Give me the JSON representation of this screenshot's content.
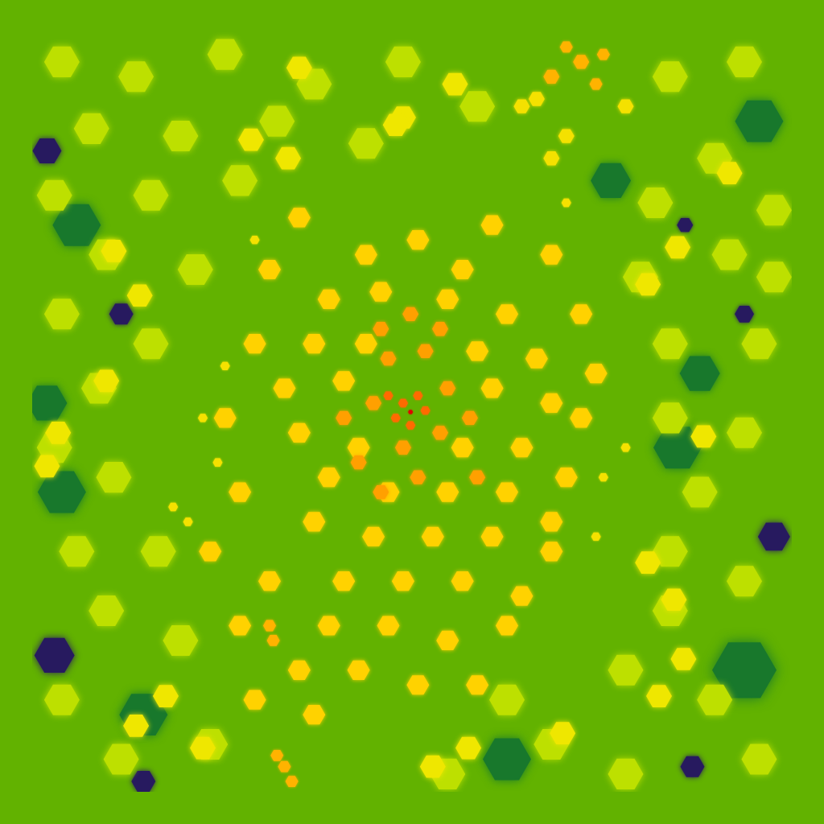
{
  "chart_data": {
    "type": "bubble",
    "xlim": [
      0,
      1024
    ],
    "ylim": [
      1024,
      0
    ],
    "grid": false,
    "tick_labels": false,
    "color_range": [
      0,
      1
    ],
    "points": [
      {
        "x": 20,
        "y": 160,
        "size": 18,
        "value": 0.05
      },
      {
        "x": 30,
        "y": 840,
        "size": 25,
        "value": 0.05
      },
      {
        "x": 120,
        "y": 380,
        "size": 15,
        "value": 0.05
      },
      {
        "x": 1000,
        "y": 680,
        "size": 20,
        "value": 0.05
      },
      {
        "x": 960,
        "y": 380,
        "size": 12,
        "value": 0.05
      },
      {
        "x": 890,
        "y": 990,
        "size": 15,
        "value": 0.05
      },
      {
        "x": 150,
        "y": 1010,
        "size": 15,
        "value": 0.05
      },
      {
        "x": 880,
        "y": 260,
        "size": 10,
        "value": 0.05
      },
      {
        "x": 60,
        "y": 260,
        "size": 30,
        "value": 0.3
      },
      {
        "x": 40,
        "y": 620,
        "size": 30,
        "value": 0.3
      },
      {
        "x": 980,
        "y": 120,
        "size": 30,
        "value": 0.3
      },
      {
        "x": 960,
        "y": 860,
        "size": 40,
        "value": 0.3
      },
      {
        "x": 640,
        "y": 980,
        "size": 30,
        "value": 0.3
      },
      {
        "x": 870,
        "y": 560,
        "size": 30,
        "value": 0.3
      },
      {
        "x": 150,
        "y": 920,
        "size": 30,
        "value": 0.3
      },
      {
        "x": 20,
        "y": 500,
        "size": 25,
        "value": 0.3
      },
      {
        "x": 780,
        "y": 200,
        "size": 25,
        "value": 0.3
      },
      {
        "x": 900,
        "y": 460,
        "size": 25,
        "value": 0.3
      },
      {
        "x": 40,
        "y": 40,
        "size": 22,
        "value": 0.65
      },
      {
        "x": 140,
        "y": 60,
        "size": 22,
        "value": 0.65
      },
      {
        "x": 260,
        "y": 30,
        "size": 22,
        "value": 0.65
      },
      {
        "x": 380,
        "y": 70,
        "size": 22,
        "value": 0.65
      },
      {
        "x": 500,
        "y": 40,
        "size": 22,
        "value": 0.65
      },
      {
        "x": 600,
        "y": 100,
        "size": 22,
        "value": 0.65
      },
      {
        "x": 860,
        "y": 60,
        "size": 22,
        "value": 0.65
      },
      {
        "x": 960,
        "y": 40,
        "size": 22,
        "value": 0.65
      },
      {
        "x": 80,
        "y": 130,
        "size": 22,
        "value": 0.65
      },
      {
        "x": 200,
        "y": 140,
        "size": 22,
        "value": 0.65
      },
      {
        "x": 330,
        "y": 120,
        "size": 22,
        "value": 0.65
      },
      {
        "x": 450,
        "y": 150,
        "size": 22,
        "value": 0.65
      },
      {
        "x": 920,
        "y": 170,
        "size": 22,
        "value": 0.65
      },
      {
        "x": 1000,
        "y": 240,
        "size": 22,
        "value": 0.65
      },
      {
        "x": 30,
        "y": 220,
        "size": 22,
        "value": 0.65
      },
      {
        "x": 160,
        "y": 220,
        "size": 22,
        "value": 0.65
      },
      {
        "x": 280,
        "y": 200,
        "size": 22,
        "value": 0.65
      },
      {
        "x": 840,
        "y": 230,
        "size": 22,
        "value": 0.65
      },
      {
        "x": 940,
        "y": 300,
        "size": 22,
        "value": 0.65
      },
      {
        "x": 100,
        "y": 300,
        "size": 22,
        "value": 0.65
      },
      {
        "x": 220,
        "y": 320,
        "size": 22,
        "value": 0.65
      },
      {
        "x": 820,
        "y": 330,
        "size": 22,
        "value": 0.65
      },
      {
        "x": 1000,
        "y": 330,
        "size": 22,
        "value": 0.65
      },
      {
        "x": 40,
        "y": 380,
        "size": 22,
        "value": 0.65
      },
      {
        "x": 160,
        "y": 420,
        "size": 22,
        "value": 0.65
      },
      {
        "x": 860,
        "y": 420,
        "size": 22,
        "value": 0.65
      },
      {
        "x": 980,
        "y": 420,
        "size": 22,
        "value": 0.65
      },
      {
        "x": 90,
        "y": 480,
        "size": 22,
        "value": 0.65
      },
      {
        "x": 30,
        "y": 560,
        "size": 22,
        "value": 0.65
      },
      {
        "x": 860,
        "y": 520,
        "size": 22,
        "value": 0.65
      },
      {
        "x": 960,
        "y": 540,
        "size": 22,
        "value": 0.65
      },
      {
        "x": 900,
        "y": 620,
        "size": 22,
        "value": 0.65
      },
      {
        "x": 110,
        "y": 600,
        "size": 22,
        "value": 0.65
      },
      {
        "x": 170,
        "y": 700,
        "size": 22,
        "value": 0.65
      },
      {
        "x": 60,
        "y": 700,
        "size": 22,
        "value": 0.65
      },
      {
        "x": 860,
        "y": 700,
        "size": 22,
        "value": 0.65
      },
      {
        "x": 960,
        "y": 740,
        "size": 22,
        "value": 0.65
      },
      {
        "x": 100,
        "y": 780,
        "size": 22,
        "value": 0.65
      },
      {
        "x": 200,
        "y": 820,
        "size": 22,
        "value": 0.65
      },
      {
        "x": 40,
        "y": 900,
        "size": 22,
        "value": 0.65
      },
      {
        "x": 860,
        "y": 780,
        "size": 22,
        "value": 0.65
      },
      {
        "x": 800,
        "y": 860,
        "size": 22,
        "value": 0.65
      },
      {
        "x": 920,
        "y": 900,
        "size": 22,
        "value": 0.65
      },
      {
        "x": 980,
        "y": 980,
        "size": 22,
        "value": 0.65
      },
      {
        "x": 120,
        "y": 980,
        "size": 22,
        "value": 0.65
      },
      {
        "x": 240,
        "y": 960,
        "size": 22,
        "value": 0.65
      },
      {
        "x": 700,
        "y": 960,
        "size": 22,
        "value": 0.65
      },
      {
        "x": 800,
        "y": 1000,
        "size": 22,
        "value": 0.65
      },
      {
        "x": 560,
        "y": 1000,
        "size": 22,
        "value": 0.65
      },
      {
        "x": 640,
        "y": 900,
        "size": 22,
        "value": 0.65
      },
      {
        "x": 360,
        "y": 48,
        "size": 16,
        "value": 0.78
      },
      {
        "x": 570,
        "y": 70,
        "size": 16,
        "value": 0.78
      },
      {
        "x": 500,
        "y": 115,
        "size": 16,
        "value": 0.78
      },
      {
        "x": 295,
        "y": 145,
        "size": 16,
        "value": 0.78
      },
      {
        "x": 345,
        "y": 170,
        "size": 16,
        "value": 0.78
      },
      {
        "x": 110,
        "y": 295,
        "size": 16,
        "value": 0.78
      },
      {
        "x": 145,
        "y": 355,
        "size": 16,
        "value": 0.78
      },
      {
        "x": 100,
        "y": 470,
        "size": 16,
        "value": 0.78
      },
      {
        "x": 35,
        "y": 540,
        "size": 16,
        "value": 0.78
      },
      {
        "x": 20,
        "y": 585,
        "size": 16,
        "value": 0.78
      },
      {
        "x": 870,
        "y": 290,
        "size": 16,
        "value": 0.78
      },
      {
        "x": 940,
        "y": 190,
        "size": 16,
        "value": 0.78
      },
      {
        "x": 830,
        "y": 340,
        "size": 16,
        "value": 0.78
      },
      {
        "x": 905,
        "y": 545,
        "size": 16,
        "value": 0.78
      },
      {
        "x": 830,
        "y": 715,
        "size": 16,
        "value": 0.78
      },
      {
        "x": 865,
        "y": 765,
        "size": 16,
        "value": 0.78
      },
      {
        "x": 845,
        "y": 895,
        "size": 16,
        "value": 0.78
      },
      {
        "x": 878,
        "y": 845,
        "size": 16,
        "value": 0.78
      },
      {
        "x": 715,
        "y": 945,
        "size": 16,
        "value": 0.78
      },
      {
        "x": 180,
        "y": 895,
        "size": 16,
        "value": 0.78
      },
      {
        "x": 140,
        "y": 935,
        "size": 16,
        "value": 0.78
      },
      {
        "x": 230,
        "y": 965,
        "size": 16,
        "value": 0.78
      },
      {
        "x": 588,
        "y": 965,
        "size": 16,
        "value": 0.78
      },
      {
        "x": 540,
        "y": 990,
        "size": 16,
        "value": 0.78
      },
      {
        "x": 490,
        "y": 125,
        "size": 16,
        "value": 0.78
      },
      {
        "x": 450,
        "y": 300,
        "size": 14,
        "value": 0.85
      },
      {
        "x": 520,
        "y": 280,
        "size": 14,
        "value": 0.85
      },
      {
        "x": 580,
        "y": 320,
        "size": 14,
        "value": 0.85
      },
      {
        "x": 400,
        "y": 360,
        "size": 14,
        "value": 0.85
      },
      {
        "x": 470,
        "y": 350,
        "size": 14,
        "value": 0.85
      },
      {
        "x": 560,
        "y": 360,
        "size": 14,
        "value": 0.85
      },
      {
        "x": 640,
        "y": 380,
        "size": 14,
        "value": 0.85
      },
      {
        "x": 380,
        "y": 420,
        "size": 14,
        "value": 0.85
      },
      {
        "x": 450,
        "y": 420,
        "size": 14,
        "value": 0.85
      },
      {
        "x": 600,
        "y": 430,
        "size": 14,
        "value": 0.85
      },
      {
        "x": 680,
        "y": 440,
        "size": 14,
        "value": 0.85
      },
      {
        "x": 340,
        "y": 480,
        "size": 14,
        "value": 0.85
      },
      {
        "x": 420,
        "y": 470,
        "size": 14,
        "value": 0.85
      },
      {
        "x": 620,
        "y": 480,
        "size": 14,
        "value": 0.85
      },
      {
        "x": 700,
        "y": 500,
        "size": 14,
        "value": 0.85
      },
      {
        "x": 360,
        "y": 540,
        "size": 14,
        "value": 0.85
      },
      {
        "x": 440,
        "y": 560,
        "size": 14,
        "value": 0.85
      },
      {
        "x": 580,
        "y": 560,
        "size": 14,
        "value": 0.85
      },
      {
        "x": 660,
        "y": 560,
        "size": 14,
        "value": 0.85
      },
      {
        "x": 740,
        "y": 520,
        "size": 14,
        "value": 0.85
      },
      {
        "x": 400,
        "y": 600,
        "size": 14,
        "value": 0.85
      },
      {
        "x": 480,
        "y": 620,
        "size": 14,
        "value": 0.85
      },
      {
        "x": 560,
        "y": 620,
        "size": 14,
        "value": 0.85
      },
      {
        "x": 640,
        "y": 620,
        "size": 14,
        "value": 0.85
      },
      {
        "x": 720,
        "y": 600,
        "size": 14,
        "value": 0.85
      },
      {
        "x": 380,
        "y": 660,
        "size": 14,
        "value": 0.85
      },
      {
        "x": 460,
        "y": 680,
        "size": 14,
        "value": 0.85
      },
      {
        "x": 540,
        "y": 680,
        "size": 14,
        "value": 0.85
      },
      {
        "x": 620,
        "y": 680,
        "size": 14,
        "value": 0.85
      },
      {
        "x": 700,
        "y": 700,
        "size": 14,
        "value": 0.85
      },
      {
        "x": 420,
        "y": 740,
        "size": 14,
        "value": 0.85
      },
      {
        "x": 500,
        "y": 740,
        "size": 14,
        "value": 0.85
      },
      {
        "x": 580,
        "y": 740,
        "size": 14,
        "value": 0.85
      },
      {
        "x": 660,
        "y": 760,
        "size": 14,
        "value": 0.85
      },
      {
        "x": 400,
        "y": 800,
        "size": 14,
        "value": 0.85
      },
      {
        "x": 480,
        "y": 800,
        "size": 14,
        "value": 0.85
      },
      {
        "x": 560,
        "y": 820,
        "size": 14,
        "value": 0.85
      },
      {
        "x": 360,
        "y": 860,
        "size": 14,
        "value": 0.85
      },
      {
        "x": 440,
        "y": 860,
        "size": 14,
        "value": 0.85
      },
      {
        "x": 520,
        "y": 880,
        "size": 14,
        "value": 0.85
      },
      {
        "x": 380,
        "y": 920,
        "size": 14,
        "value": 0.85
      },
      {
        "x": 300,
        "y": 900,
        "size": 14,
        "value": 0.85
      },
      {
        "x": 320,
        "y": 740,
        "size": 14,
        "value": 0.85
      },
      {
        "x": 280,
        "y": 620,
        "size": 14,
        "value": 0.85
      },
      {
        "x": 260,
        "y": 520,
        "size": 14,
        "value": 0.85
      },
      {
        "x": 300,
        "y": 420,
        "size": 14,
        "value": 0.85
      },
      {
        "x": 320,
        "y": 320,
        "size": 14,
        "value": 0.85
      },
      {
        "x": 360,
        "y": 250,
        "size": 14,
        "value": 0.85
      },
      {
        "x": 620,
        "y": 260,
        "size": 14,
        "value": 0.85
      },
      {
        "x": 700,
        "y": 300,
        "size": 14,
        "value": 0.85
      },
      {
        "x": 740,
        "y": 380,
        "size": 14,
        "value": 0.85
      },
      {
        "x": 760,
        "y": 460,
        "size": 14,
        "value": 0.85
      },
      {
        "x": 240,
        "y": 700,
        "size": 14,
        "value": 0.85
      },
      {
        "x": 280,
        "y": 800,
        "size": 14,
        "value": 0.85
      },
      {
        "x": 600,
        "y": 880,
        "size": 14,
        "value": 0.85
      },
      {
        "x": 640,
        "y": 800,
        "size": 14,
        "value": 0.85
      },
      {
        "x": 700,
        "y": 660,
        "size": 14,
        "value": 0.85
      },
      {
        "x": 230,
        "y": 520,
        "size": 6,
        "value": 0.8
      },
      {
        "x": 250,
        "y": 580,
        "size": 6,
        "value": 0.8
      },
      {
        "x": 190,
        "y": 640,
        "size": 6,
        "value": 0.8
      },
      {
        "x": 210,
        "y": 660,
        "size": 6,
        "value": 0.8
      },
      {
        "x": 770,
        "y": 600,
        "size": 6,
        "value": 0.8
      },
      {
        "x": 800,
        "y": 560,
        "size": 6,
        "value": 0.8
      },
      {
        "x": 760,
        "y": 680,
        "size": 6,
        "value": 0.8
      },
      {
        "x": 300,
        "y": 280,
        "size": 6,
        "value": 0.8
      },
      {
        "x": 720,
        "y": 230,
        "size": 6,
        "value": 0.8
      },
      {
        "x": 260,
        "y": 450,
        "size": 6,
        "value": 0.8
      },
      {
        "x": 680,
        "y": 90,
        "size": 10,
        "value": 0.8
      },
      {
        "x": 720,
        "y": 140,
        "size": 10,
        "value": 0.8
      },
      {
        "x": 660,
        "y": 100,
        "size": 10,
        "value": 0.8
      },
      {
        "x": 800,
        "y": 100,
        "size": 10,
        "value": 0.8
      },
      {
        "x": 700,
        "y": 170,
        "size": 10,
        "value": 0.8
      },
      {
        "x": 740,
        "y": 40,
        "size": 10,
        "value": 0.9
      },
      {
        "x": 770,
        "y": 30,
        "size": 8,
        "value": 0.9
      },
      {
        "x": 700,
        "y": 60,
        "size": 10,
        "value": 0.9
      },
      {
        "x": 760,
        "y": 70,
        "size": 8,
        "value": 0.9
      },
      {
        "x": 720,
        "y": 20,
        "size": 8,
        "value": 0.9
      },
      {
        "x": 340,
        "y": 990,
        "size": 8,
        "value": 0.9
      },
      {
        "x": 350,
        "y": 1010,
        "size": 8,
        "value": 0.9
      },
      {
        "x": 330,
        "y": 975,
        "size": 8,
        "value": 0.9
      },
      {
        "x": 320,
        "y": 800,
        "size": 8,
        "value": 0.9
      },
      {
        "x": 325,
        "y": 820,
        "size": 8,
        "value": 0.9
      },
      {
        "x": 480,
        "y": 440,
        "size": 10,
        "value": 0.93
      },
      {
        "x": 530,
        "y": 430,
        "size": 10,
        "value": 0.93
      },
      {
        "x": 460,
        "y": 500,
        "size": 10,
        "value": 0.93
      },
      {
        "x": 560,
        "y": 480,
        "size": 10,
        "value": 0.93
      },
      {
        "x": 500,
        "y": 560,
        "size": 10,
        "value": 0.93
      },
      {
        "x": 440,
        "y": 580,
        "size": 10,
        "value": 0.93
      },
      {
        "x": 550,
        "y": 540,
        "size": 10,
        "value": 0.93
      },
      {
        "x": 590,
        "y": 520,
        "size": 10,
        "value": 0.93
      },
      {
        "x": 470,
        "y": 620,
        "size": 10,
        "value": 0.93
      },
      {
        "x": 520,
        "y": 600,
        "size": 10,
        "value": 0.93
      },
      {
        "x": 420,
        "y": 520,
        "size": 10,
        "value": 0.93
      },
      {
        "x": 600,
        "y": 600,
        "size": 10,
        "value": 0.93
      },
      {
        "x": 510,
        "y": 380,
        "size": 10,
        "value": 0.93
      },
      {
        "x": 470,
        "y": 400,
        "size": 10,
        "value": 0.93
      },
      {
        "x": 550,
        "y": 400,
        "size": 10,
        "value": 0.93
      },
      {
        "x": 500,
        "y": 500,
        "size": 6,
        "value": 0.97
      },
      {
        "x": 520,
        "y": 490,
        "size": 6,
        "value": 0.97
      },
      {
        "x": 490,
        "y": 520,
        "size": 6,
        "value": 0.97
      },
      {
        "x": 510,
        "y": 530,
        "size": 6,
        "value": 0.97
      },
      {
        "x": 530,
        "y": 510,
        "size": 6,
        "value": 0.97
      },
      {
        "x": 480,
        "y": 490,
        "size": 6,
        "value": 0.97
      },
      {
        "x": 510,
        "y": 512,
        "size": 3,
        "value": 1.0
      }
    ]
  }
}
